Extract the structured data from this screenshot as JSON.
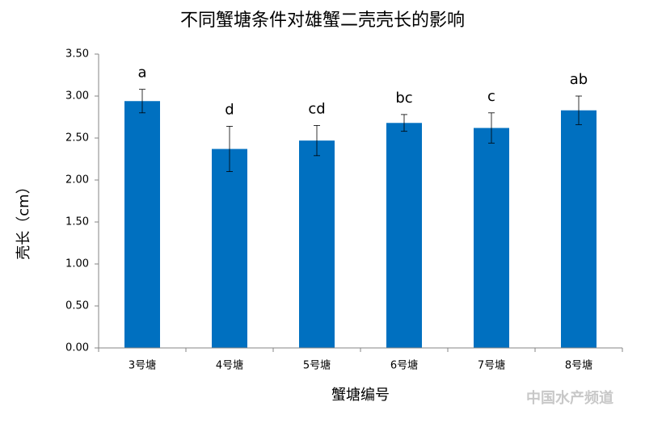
{
  "chart_data": {
    "type": "bar",
    "title": "不同蟹塘条件对雄蟹二壳壳长的影响",
    "x_label": "蟹塘编号",
    "y_label": "壳长（cm）",
    "categories": [
      "3号塘",
      "4号塘",
      "5号塘",
      "6号塘",
      "7号塘",
      "8号塘"
    ],
    "values": [
      2.94,
      2.37,
      2.47,
      2.68,
      2.62,
      2.83
    ],
    "errors": [
      0.14,
      0.27,
      0.18,
      0.1,
      0.18,
      0.17
    ],
    "annotations": [
      "a",
      "d",
      "cd",
      "bc",
      "c",
      "ab"
    ],
    "color": "#0070c0",
    "ylim": [
      0,
      3.5
    ],
    "yticks": [
      {
        "value": 0,
        "label": "0.00"
      },
      {
        "value": 0.5,
        "label": "0.50"
      },
      {
        "value": 1,
        "label": "1.00"
      },
      {
        "value": 1.5,
        "label": "1.50"
      },
      {
        "value": 2,
        "label": "2.00"
      },
      {
        "value": 2.5,
        "label": "2.50"
      },
      {
        "value": 3,
        "label": "3.00"
      },
      {
        "value": 3.5,
        "label": "3.50"
      }
    ],
    "grid": false,
    "watermark": "中国水产频道"
  }
}
